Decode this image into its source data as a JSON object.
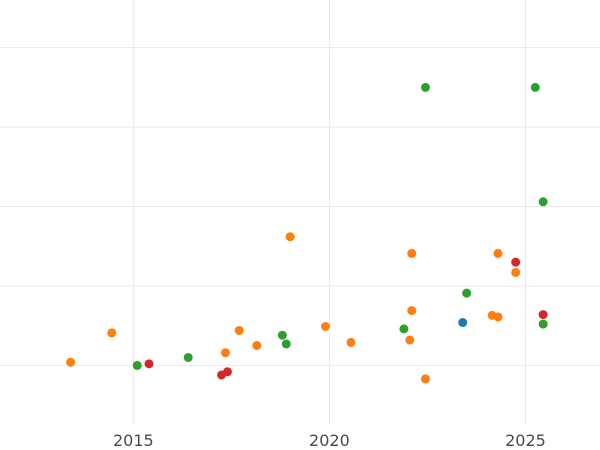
{
  "chart_data": {
    "type": "scatter",
    "title": "",
    "xlabel": "",
    "ylabel": "",
    "x_tick_labels": [
      "2015",
      "2020",
      "2025"
    ],
    "x_ticks": [
      2015,
      2020,
      2025
    ],
    "y_ticks": [
      1,
      2,
      3,
      4,
      5
    ],
    "xlim": [
      2011.6,
      2026.9
    ],
    "ylim": [
      0.25,
      5.6
    ],
    "grid": true,
    "legend": "none",
    "colors": {
      "blue": "#1f77b4",
      "orange": "#ff7f0e",
      "green": "#2ca02c",
      "red": "#d62728"
    },
    "series": [
      {
        "color": "#ff7f0e",
        "points": [
          {
            "x": 2013.4,
            "y": 1.04
          },
          {
            "x": 2014.45,
            "y": 1.41
          },
          {
            "x": 2017.35,
            "y": 1.16
          },
          {
            "x": 2017.7,
            "y": 1.44
          },
          {
            "x": 2018.15,
            "y": 1.25
          },
          {
            "x": 2019.0,
            "y": 2.62
          },
          {
            "x": 2019.9,
            "y": 1.49
          },
          {
            "x": 2020.55,
            "y": 1.29
          },
          {
            "x": 2022.05,
            "y": 1.32
          },
          {
            "x": 2022.1,
            "y": 1.69
          },
          {
            "x": 2022.1,
            "y": 2.41
          },
          {
            "x": 2022.45,
            "y": 0.83
          },
          {
            "x": 2024.15,
            "y": 1.63
          },
          {
            "x": 2024.3,
            "y": 1.61
          },
          {
            "x": 2024.3,
            "y": 2.41
          },
          {
            "x": 2024.75,
            "y": 2.17
          }
        ]
      },
      {
        "color": "#2ca02c",
        "points": [
          {
            "x": 2015.1,
            "y": 1.0
          },
          {
            "x": 2016.4,
            "y": 1.1
          },
          {
            "x": 2018.8,
            "y": 1.38
          },
          {
            "x": 2018.9,
            "y": 1.27
          },
          {
            "x": 2021.9,
            "y": 1.46
          },
          {
            "x": 2022.45,
            "y": 4.5
          },
          {
            "x": 2023.5,
            "y": 1.91
          },
          {
            "x": 2025.25,
            "y": 4.5
          },
          {
            "x": 2025.45,
            "y": 3.06
          },
          {
            "x": 2025.45,
            "y": 1.52
          }
        ]
      },
      {
        "color": "#d62728",
        "points": [
          {
            "x": 2015.4,
            "y": 1.02
          },
          {
            "x": 2017.25,
            "y": 0.88
          },
          {
            "x": 2017.4,
            "y": 0.92
          },
          {
            "x": 2024.75,
            "y": 2.3
          },
          {
            "x": 2025.45,
            "y": 1.64
          }
        ]
      },
      {
        "color": "#1f77b4",
        "points": [
          {
            "x": 2023.4,
            "y": 1.54
          }
        ]
      }
    ]
  }
}
